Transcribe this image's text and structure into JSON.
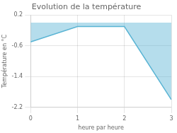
{
  "chart_data": {
    "type": "area",
    "title": "Evolution de la température",
    "xlabel": "heure par heure",
    "ylabel": "Température en °C",
    "x": [
      0,
      1,
      2,
      3
    ],
    "values": [
      -0.5,
      -0.1,
      -0.1,
      -2.0
    ],
    "color": "#5ab4d4",
    "xlim": [
      0,
      3
    ],
    "xticks": [
      0,
      1,
      2,
      3
    ],
    "ylim": [
      -2.2,
      0.2
    ],
    "yticks": [
      0.2,
      -0.6,
      -1.4,
      -2.2
    ],
    "grid": true
  }
}
